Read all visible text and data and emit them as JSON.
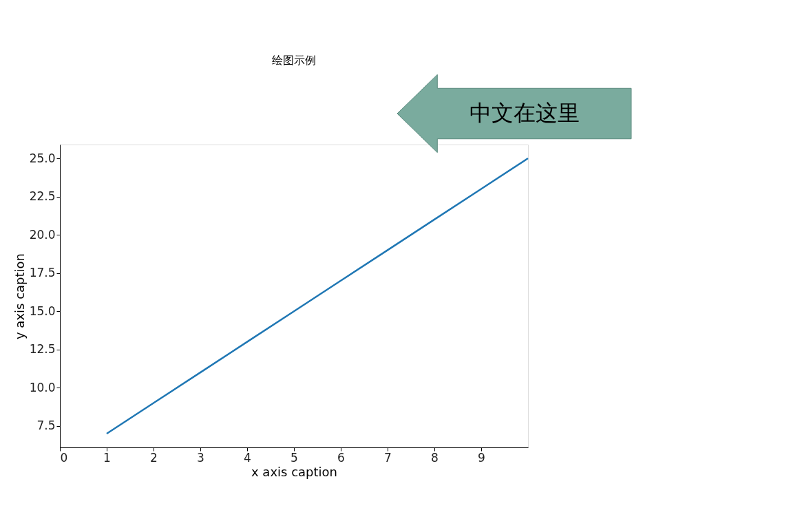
{
  "chart_data": {
    "type": "line",
    "title": "绘图示例",
    "xlabel": "x axis caption",
    "ylabel": "y axis caption",
    "x": [
      1,
      2,
      3,
      4,
      5,
      6,
      7,
      8,
      9,
      10
    ],
    "series": [
      {
        "color": "#1f77b4",
        "values": [
          7,
          9,
          11,
          13,
          15,
          17,
          19,
          21,
          23,
          25
        ]
      }
    ],
    "xlim": [
      0,
      10
    ],
    "xticks": [
      0,
      1,
      2,
      3,
      4,
      5,
      6,
      7,
      8,
      9
    ],
    "ylim": [
      6.1,
      25.9
    ],
    "yticks": [
      7.5,
      {
        "value": 10,
        "label": "10.0"
      },
      12.5,
      {
        "value": 15,
        "label": "15.0"
      },
      17.5,
      {
        "value": 20,
        "label": "20.0"
      },
      22.5,
      {
        "value": 25,
        "label": "25.0"
      }
    ],
    "annotations": [
      "中文在这里"
    ],
    "grid": false,
    "legend": false
  }
}
